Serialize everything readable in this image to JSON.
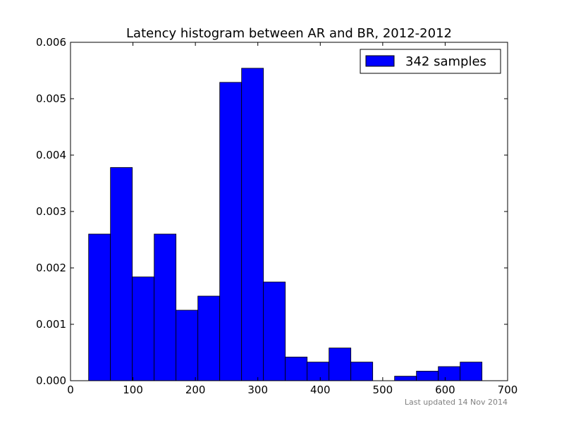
{
  "chart_data": {
    "type": "bar",
    "title": "Latency histogram between AR and BR, 2012-2012",
    "xlabel": "",
    "ylabel": "",
    "xlim": [
      0,
      700
    ],
    "ylim": [
      0,
      0.006
    ],
    "xticks": [
      "0",
      "100",
      "200",
      "300",
      "400",
      "500",
      "600",
      "700"
    ],
    "yticks": [
      "0.000",
      "0.001",
      "0.002",
      "0.003",
      "0.004",
      "0.005",
      "0.006"
    ],
    "grid": false,
    "legend_position": "top-right",
    "series": [
      {
        "name": "342 samples",
        "color": "#0000ff",
        "bins": [
          {
            "x0": 29,
            "x1": 64,
            "value": 0.0026
          },
          {
            "x0": 64,
            "x1": 99,
            "value": 0.00378
          },
          {
            "x0": 99,
            "x1": 134,
            "value": 0.00184
          },
          {
            "x0": 134,
            "x1": 169,
            "value": 0.0026
          },
          {
            "x0": 169,
            "x1": 204,
            "value": 0.00125
          },
          {
            "x0": 204,
            "x1": 239,
            "value": 0.0015
          },
          {
            "x0": 239,
            "x1": 274,
            "value": 0.00529
          },
          {
            "x0": 274,
            "x1": 309,
            "value": 0.00554
          },
          {
            "x0": 309,
            "x1": 344,
            "value": 0.00175
          },
          {
            "x0": 344,
            "x1": 379,
            "value": 0.00042
          },
          {
            "x0": 379,
            "x1": 414,
            "value": 0.00033
          },
          {
            "x0": 414,
            "x1": 449,
            "value": 0.00058
          },
          {
            "x0": 449,
            "x1": 484,
            "value": 0.00033
          },
          {
            "x0": 484,
            "x1": 519,
            "value": 0.0
          },
          {
            "x0": 519,
            "x1": 554,
            "value": 8e-05
          },
          {
            "x0": 554,
            "x1": 589,
            "value": 0.00017
          },
          {
            "x0": 589,
            "x1": 624,
            "value": 0.00025
          },
          {
            "x0": 624,
            "x1": 659,
            "value": 0.00033
          }
        ]
      }
    ]
  },
  "footer": {
    "text": "Last updated 14 Nov 2014"
  }
}
